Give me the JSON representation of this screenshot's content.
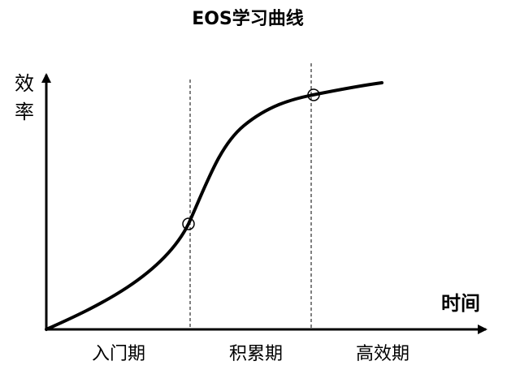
{
  "title": "EOS学习曲线",
  "y_axis_label": "效率",
  "x_axis_label": "时间",
  "phases": [
    "入门期",
    "积累期",
    "高效期"
  ],
  "colors": {
    "line": "#000000",
    "background": "#ffffff"
  }
}
